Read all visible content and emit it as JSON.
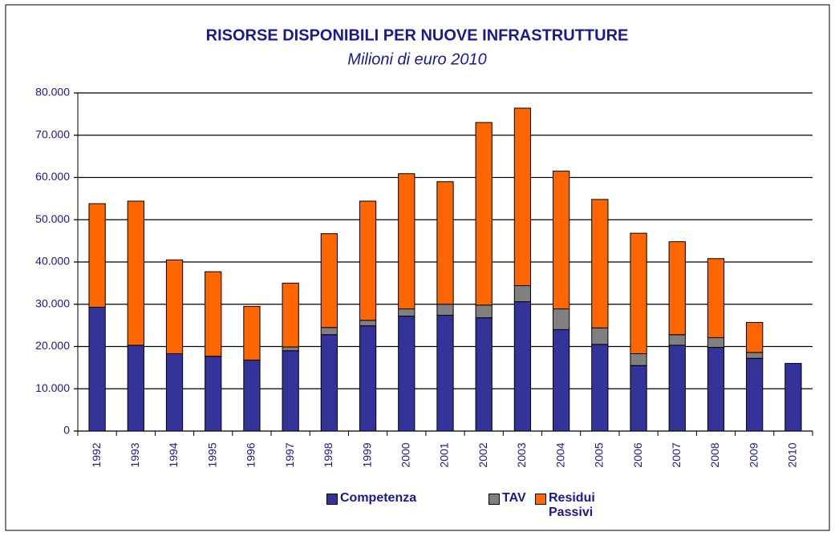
{
  "chart_data": {
    "type": "stacked_bar",
    "title": "RISORSE DISPONIBILI PER NUOVE INFRASTRUTTURE",
    "subtitle": "Milioni di euro 2010",
    "categories": [
      "1992",
      "1993",
      "1994",
      "1995",
      "1996",
      "1997",
      "1998",
      "1999",
      "2000",
      "2001",
      "2002",
      "2003",
      "2004",
      "2005",
      "2006",
      "2007",
      "2008",
      "2009",
      "2010"
    ],
    "series": [
      {
        "name": "Competenza",
        "color": "#333399",
        "values": [
          29300,
          20300,
          18300,
          17700,
          16800,
          19000,
          22800,
          24900,
          27200,
          27400,
          26800,
          30600,
          24000,
          20500,
          15500,
          20300,
          19800,
          17200,
          16000
        ]
      },
      {
        "name": "TAV",
        "color": "#808080",
        "values": [
          0,
          0,
          0,
          0,
          0,
          900,
          1700,
          1300,
          1700,
          2600,
          3000,
          3800,
          4900,
          3900,
          2800,
          2500,
          2300,
          1400,
          0
        ]
      },
      {
        "name": "Residui Passivi",
        "color": "#ff6600",
        "values": [
          24500,
          34100,
          22200,
          20000,
          12700,
          15100,
          22200,
          28200,
          32000,
          29000,
          43200,
          42000,
          32600,
          30400,
          28500,
          22000,
          18700,
          7100,
          0
        ]
      }
    ],
    "ylim": [
      0,
      80000
    ],
    "yticks": [
      0,
      {
        "value": 10000,
        "label": "10.000"
      },
      {
        "value": 20000,
        "label": "20.000"
      },
      {
        "value": 30000,
        "label": "30.000"
      },
      {
        "value": 40000,
        "label": "40.000"
      },
      {
        "value": 50000,
        "label": "50.000"
      },
      {
        "value": 60000,
        "label": "60.000"
      },
      {
        "value": 70000,
        "label": "70.000"
      },
      {
        "value": 80000,
        "label": "80.000"
      }
    ],
    "grid": true,
    "legend": "bottom"
  }
}
